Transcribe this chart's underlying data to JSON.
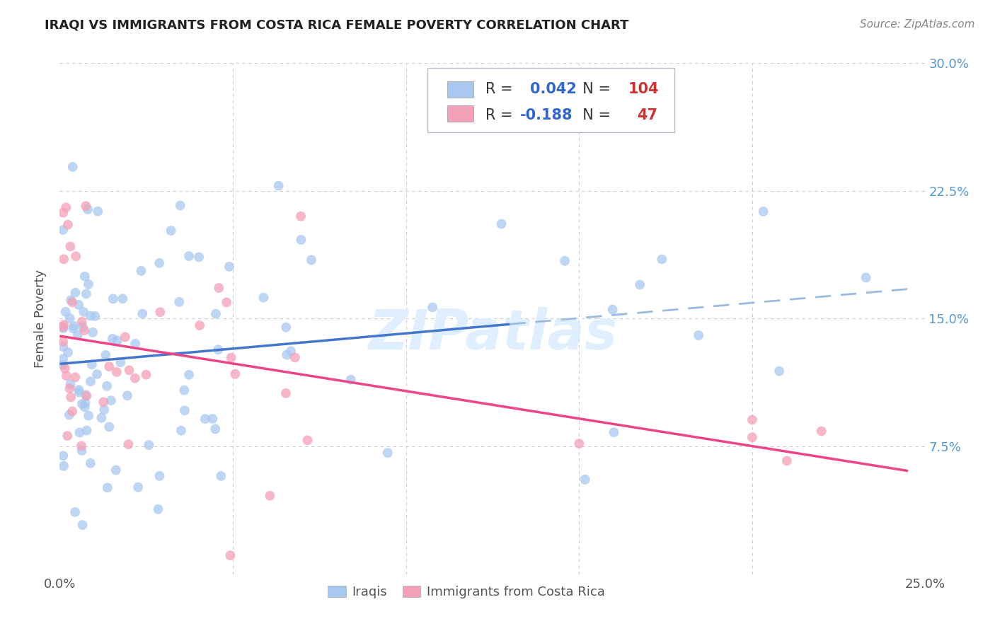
{
  "title": "IRAQI VS IMMIGRANTS FROM COSTA RICA FEMALE POVERTY CORRELATION CHART",
  "source": "Source: ZipAtlas.com",
  "ylabel": "Female Poverty",
  "xlim": [
    0.0,
    0.25
  ],
  "ylim": [
    0.0,
    0.3
  ],
  "R_iraqi": 0.042,
  "N_iraqi": 104,
  "R_costarica": -0.188,
  "N_costarica": 47,
  "color_iraqi": "#a8c8f0",
  "color_costarica": "#f4a0b8",
  "line_color_iraqi_solid": "#4477cc",
  "line_color_iraqi_dash": "#99bbdd",
  "line_color_costarica": "#ee4488",
  "background_color": "#ffffff",
  "grid_color": "#cccccc",
  "watermark": "ZIPatlas",
  "legend_R_color": "#3366cc",
  "legend_N_color": "#cc3333",
  "legend_text_color": "#333333",
  "title_color": "#222222",
  "source_color": "#888888",
  "ylabel_color": "#555555",
  "tick_color_right": "#5599cc",
  "tick_color_bottom": "#555555"
}
